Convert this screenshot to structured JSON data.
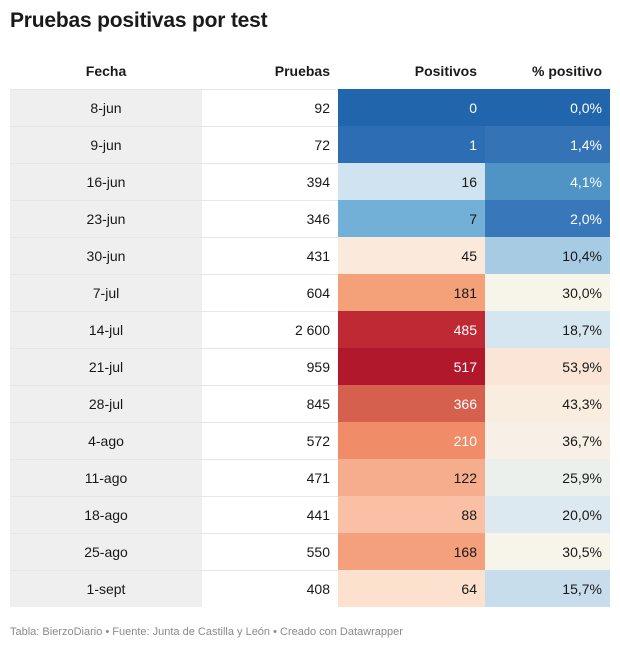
{
  "title": "Pruebas positivas por test",
  "footer": "Tabla: BierzoDiario • Fuente: Junta de Castilla y León • Creado con Datawrapper",
  "chart_data": {
    "type": "table",
    "title": "Pruebas positivas por test",
    "columns": [
      "Fecha",
      "Pruebas",
      "Positivos",
      "% positivo"
    ],
    "rows": [
      {
        "fecha": "8-jun",
        "pruebas": "92",
        "positivos": "0",
        "pct": "0,0%",
        "positivos_color": "#2166ac",
        "pct_color": "#2166ac",
        "positivos_text": "#ffffff",
        "pct_text": "#ffffff"
      },
      {
        "fecha": "9-jun",
        "pruebas": "72",
        "positivos": "1",
        "pct": "1,4%",
        "positivos_color": "#2d6db3",
        "pct_color": "#3473b6",
        "positivos_text": "#ffffff",
        "pct_text": "#ffffff"
      },
      {
        "fecha": "16-jun",
        "pruebas": "394",
        "positivos": "16",
        "pct": "4,1%",
        "positivos_color": "#cfe3f1",
        "pct_color": "#5094c6",
        "positivos_text": "#181818",
        "pct_text": "#ffffff"
      },
      {
        "fecha": "23-jun",
        "pruebas": "346",
        "positivos": "7",
        "pct": "2,0%",
        "positivos_color": "#73b0d7",
        "pct_color": "#3877ba",
        "positivos_text": "#181818",
        "pct_text": "#ffffff"
      },
      {
        "fecha": "30-jun",
        "pruebas": "431",
        "positivos": "45",
        "pct": "10,4%",
        "positivos_color": "#fbeadb",
        "pct_color": "#a7cbe3",
        "positivos_text": "#181818",
        "pct_text": "#181818"
      },
      {
        "fecha": "7-jul",
        "pruebas": "604",
        "positivos": "181",
        "pct": "30,0%",
        "positivos_color": "#f4a078",
        "pct_color": "#f7f4ea",
        "positivos_text": "#181818",
        "pct_text": "#181818"
      },
      {
        "fecha": "14-jul",
        "pruebas": "2 600",
        "positivos": "485",
        "pct": "18,7%",
        "positivos_color": "#bf2933",
        "pct_color": "#d6e6f0",
        "positivos_text": "#ffffff",
        "pct_text": "#181818"
      },
      {
        "fecha": "21-jul",
        "pruebas": "959",
        "positivos": "517",
        "pct": "53,9%",
        "positivos_color": "#b2182b",
        "pct_color": "#fae5d6",
        "positivos_text": "#ffffff",
        "pct_text": "#181818"
      },
      {
        "fecha": "28-jul",
        "pruebas": "845",
        "positivos": "366",
        "pct": "43,3%",
        "positivos_color": "#d5604e",
        "pct_color": "#f9ede0",
        "positivos_text": "#ffffff",
        "pct_text": "#181818"
      },
      {
        "fecha": "4-ago",
        "pruebas": "572",
        "positivos": "210",
        "pct": "36,7%",
        "positivos_color": "#f08c68",
        "pct_color": "#f8f0e6",
        "positivos_text": "#ffffff",
        "pct_text": "#181818"
      },
      {
        "fecha": "11-ago",
        "pruebas": "471",
        "positivos": "122",
        "pct": "25,9%",
        "positivos_color": "#f6ad8d",
        "pct_color": "#ecf0ec",
        "positivos_text": "#181818",
        "pct_text": "#181818"
      },
      {
        "fecha": "18-ago",
        "pruebas": "441",
        "positivos": "88",
        "pct": "20,0%",
        "positivos_color": "#fac0a5",
        "pct_color": "#dce9f0",
        "positivos_text": "#181818",
        "pct_text": "#181818"
      },
      {
        "fecha": "25-ago",
        "pruebas": "550",
        "positivos": "168",
        "pct": "30,5%",
        "positivos_color": "#f4a07c",
        "pct_color": "#f7f4ea",
        "positivos_text": "#181818",
        "pct_text": "#181818"
      },
      {
        "fecha": "1-sept",
        "pruebas": "408",
        "positivos": "64",
        "pct": "15,7%",
        "positivos_color": "#fde1cf",
        "pct_color": "#c8ddeb",
        "positivos_text": "#181818",
        "pct_text": "#181818"
      }
    ]
  }
}
